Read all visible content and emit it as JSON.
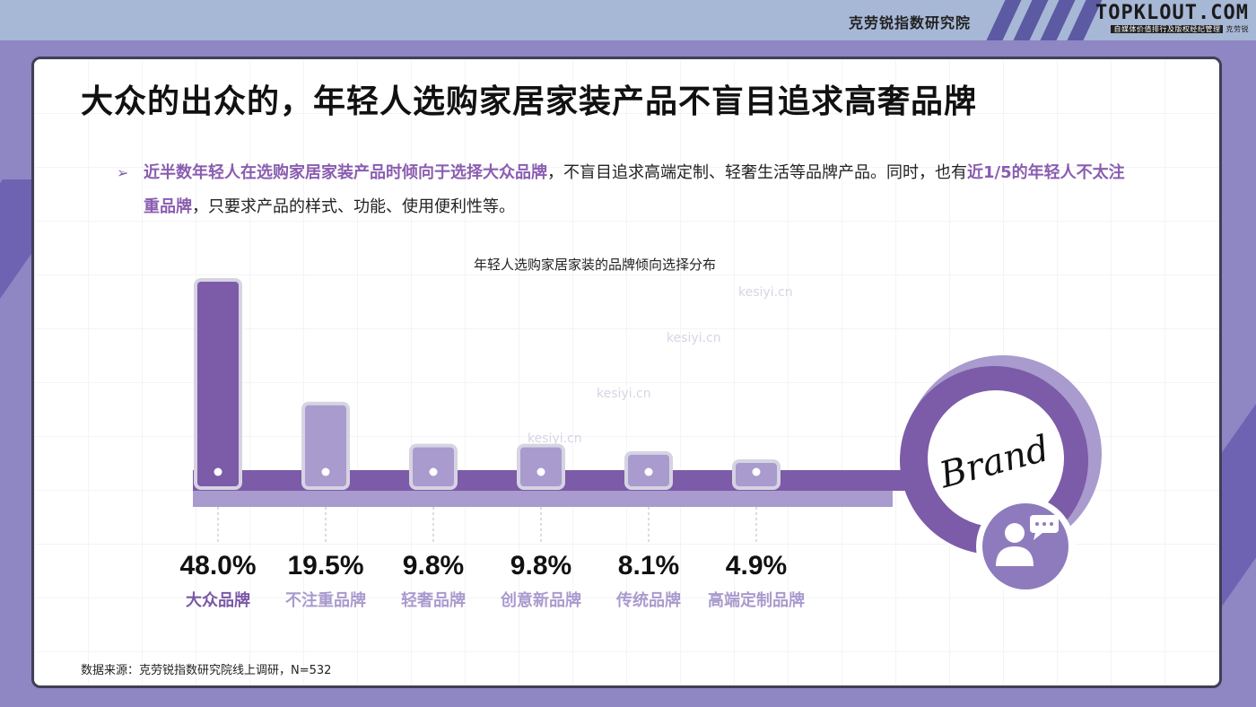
{
  "header": {
    "org_name": "克劳锐指数研究院",
    "logo_main": "TOPKLOUT.COM",
    "logo_sub_slogan": "自媒体价值排行及版权经纪管理",
    "logo_sub_brand": "克劳锐"
  },
  "page": {
    "title": "大众的出众的，年轻人选购家居家装产品不盲目追求高奢品牌",
    "bullet": {
      "part1_highlight": "近半数年轻人在选购家居家装产品时倾向于选择大众品牌",
      "part2": "，不盲目追求高端定制、轻奢生活等品牌产品。同时，也有",
      "part3_highlight": "近1/5的年轻人不太注重品牌",
      "part4": "，只要求产品的样式、功能、使用便利性等。"
    },
    "source": "数据来源：克劳锐指数研究院线上调研，N=532",
    "brand_word": "Brand",
    "watermark": "kesiyi.cn"
  },
  "colors": {
    "accent": "#7b5ea8",
    "bar_primary": "#7c5ba8",
    "bar_secondary": "#a99bce",
    "highlight_text": "#8a5db0",
    "label_primary": "#7a58a6",
    "label_secondary": "#a99bce"
  },
  "chart_data": {
    "type": "bar",
    "title": "年轻人选购家居家装的品牌倾向选择分布",
    "categories": [
      "大众品牌",
      "不注重品牌",
      "轻奢品牌",
      "创意新品牌",
      "传统品牌",
      "高端定制品牌"
    ],
    "values": [
      48.0,
      19.5,
      9.8,
      9.8,
      8.1,
      4.9
    ],
    "value_labels": [
      "48.0%",
      "19.5%",
      "9.8%",
      "9.8%",
      "8.1%",
      "4.9%"
    ],
    "unit": "%"
  }
}
